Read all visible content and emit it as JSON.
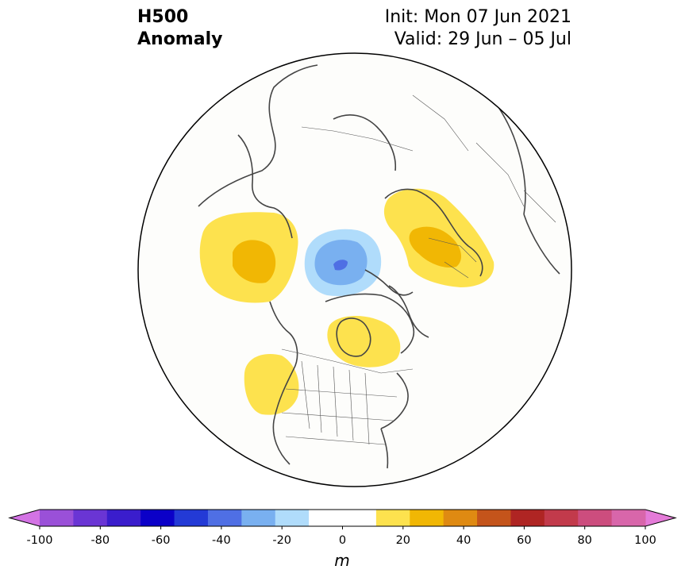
{
  "title": {
    "variable": "H500",
    "product": "Anomaly",
    "init": "Init: Mon 07 Jun 2021",
    "valid": "Valid: 29 Jun – 05 Jul"
  },
  "map": {
    "projection": "north-polar-stereographic",
    "domain": "North America / Arctic / Eurasia",
    "background_color": "#fdfdfb",
    "coastline_color": "#444444",
    "anomaly_features": [
      {
        "region": "Northeast Pacific / Alaska",
        "sign": "positive",
        "peak_level_m": 20
      },
      {
        "region": "Arctic Ocean north of Canada",
        "sign": "negative",
        "peak_level_m": -40
      },
      {
        "region": "Scandinavia / Northwest Russia",
        "sign": "positive",
        "peak_level_m": 20
      },
      {
        "region": "Hudson Bay / Central Canada",
        "sign": "positive",
        "peak_level_m": 10
      },
      {
        "region": "US Pacific Northwest",
        "sign": "positive",
        "peak_level_m": 10
      }
    ]
  },
  "colorbar": {
    "units": "m",
    "min": -100,
    "max": 100,
    "step": 10,
    "tick_labels": [
      "-100",
      "-80",
      "-60",
      "-40",
      "-20",
      "0",
      "20",
      "40",
      "60",
      "80",
      "100"
    ],
    "colors": [
      "#d373e4",
      "#9a50d8",
      "#6a35d4",
      "#3a1dcc",
      "#0b00c8",
      "#233ad6",
      "#4f6fe4",
      "#79b0f0",
      "#b0dcfb",
      "#ffffff",
      "#ffffff",
      "#fde24e",
      "#f1b704",
      "#df8a12",
      "#c4541b",
      "#af2523",
      "#c23a4b",
      "#cc4d7e",
      "#d866aa",
      "#e47bd8"
    ],
    "extend": "both"
  }
}
